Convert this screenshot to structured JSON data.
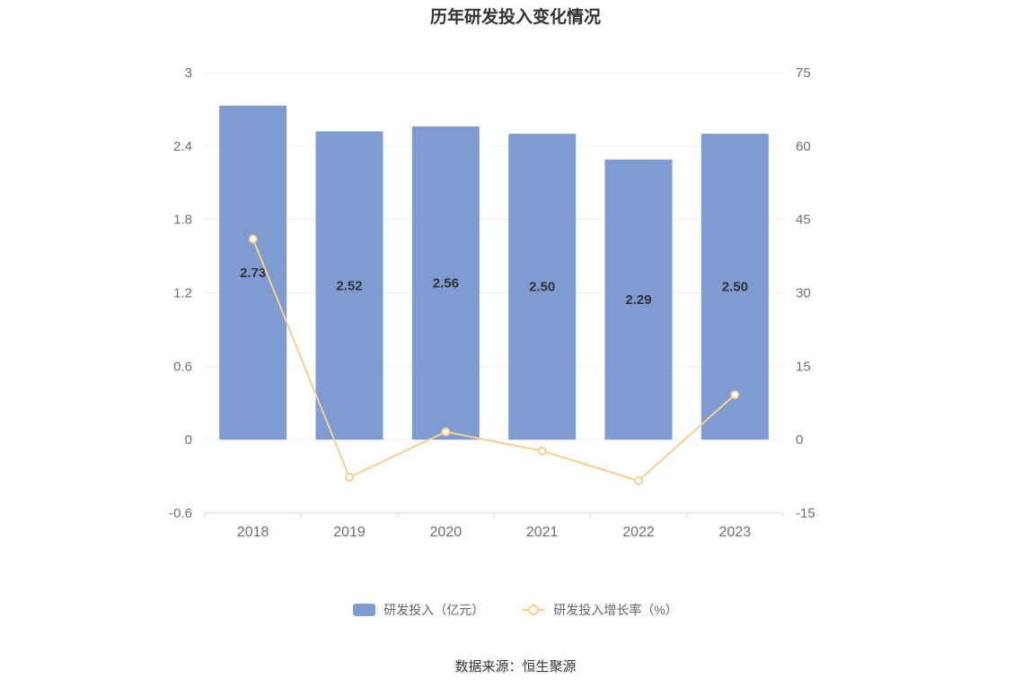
{
  "title": "历年研发投入变化情况",
  "footer": "数据来源：恒生聚源",
  "legend": [
    {
      "label": "研发投入（亿元）",
      "type": "bar"
    },
    {
      "label": "研发投入增长率（%）",
      "type": "line"
    }
  ],
  "colors": {
    "bar": "#7E9BD2",
    "line": "#F9CF8E",
    "title": "#333333",
    "axis_label": "#6E7079",
    "bar_label": "#333333",
    "grid_line": "#E9EEF7",
    "axis_line": "#CDD8EA",
    "legend_text": "#666666",
    "marker_fill": "#FFFFFF"
  },
  "chart_data": {
    "type": "bar",
    "subtype": "bar+line dual-axis",
    "title": "历年研发投入变化情况",
    "categories": [
      "2018",
      "2019",
      "2020",
      "2021",
      "2022",
      "2023"
    ],
    "series": [
      {
        "name": "研发投入（亿元）",
        "type": "bar",
        "axis": "left",
        "values": [
          2.73,
          2.52,
          2.56,
          2.5,
          2.29,
          2.5
        ],
        "labels": [
          "2.73",
          "2.52",
          "2.56",
          "2.50",
          "2.29",
          "2.50"
        ]
      },
      {
        "name": "研发投入增长率（%）",
        "type": "line",
        "axis": "right",
        "values": [
          41.0,
          -7.7,
          1.6,
          -2.3,
          -8.4,
          9.2
        ]
      }
    ],
    "left_axis": {
      "min": -0.6,
      "max": 3,
      "ticks": [
        3,
        2.4,
        1.8,
        1.2,
        0.6,
        0,
        -0.6
      ],
      "tick_labels": [
        "3",
        "2.4",
        "1.8",
        "1.2",
        "0.6",
        "0",
        "-0.6"
      ]
    },
    "right_axis": {
      "min": -15,
      "max": 75,
      "ticks": [
        75,
        60,
        45,
        30,
        15,
        0,
        -15
      ],
      "tick_labels": [
        "75",
        "60",
        "45",
        "30",
        "15",
        "0",
        "-15"
      ]
    },
    "grid": true,
    "legend_position": "bottom"
  }
}
